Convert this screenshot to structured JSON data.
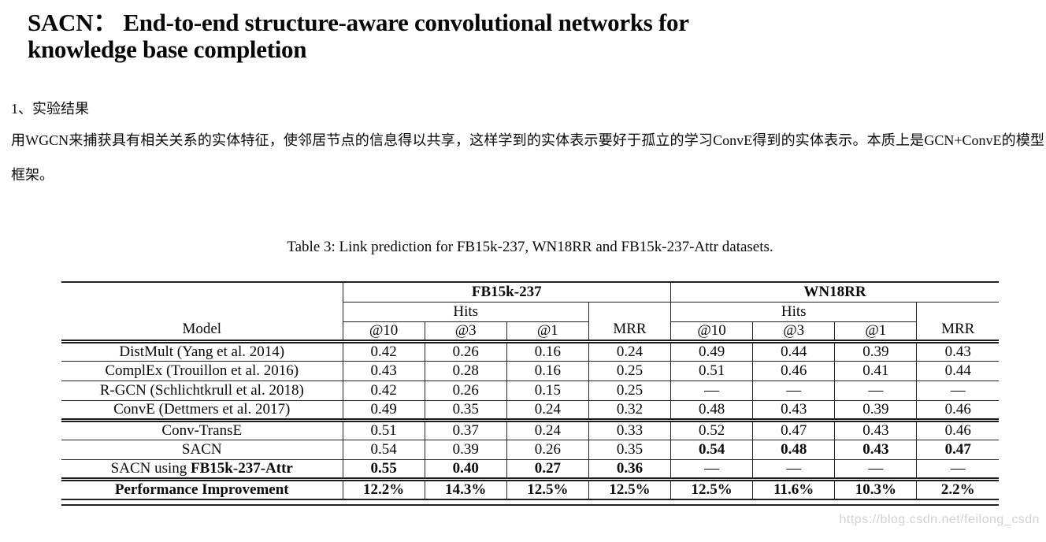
{
  "page": {
    "title_line1": "SACN： End-to-end structure-aware convolutional networks for",
    "title_line2": "knowledge base completion",
    "section_heading": "1、实验结果",
    "paragraph": "用WGCN来捕获具有相关关系的实体特征，使邻居节点的信息得以共享，这样学到的实体表示要好于孤立的学习ConvE得到的实体表示。本质上是GCN+ConvE的模型框架。",
    "watermark": "https://blog.csdn.net/feilong_csdn"
  },
  "table": {
    "caption": "Table 3: Link prediction for FB15k-237, WN18RR and FB15k-237-Attr datasets.",
    "model_header": "Model",
    "hits_header": "Hits",
    "mrr_header": "MRR",
    "dataset_groups": [
      "FB15k-237",
      "WN18RR"
    ],
    "metric_headers": [
      "@10",
      "@3",
      "@1"
    ],
    "rows": [
      {
        "name": "distmult",
        "group_start": true,
        "label": [
          {
            "text": "DistMult (Yang et al. 2014)",
            "bold": false
          }
        ],
        "values": [
          {
            "text": "0.42",
            "bold": false
          },
          {
            "text": "0.26",
            "bold": false
          },
          {
            "text": "0.16",
            "bold": false
          },
          {
            "text": "0.24",
            "bold": false
          },
          {
            "text": "0.49",
            "bold": false
          },
          {
            "text": "0.44",
            "bold": false
          },
          {
            "text": "0.39",
            "bold": false
          },
          {
            "text": "0.43",
            "bold": false
          }
        ]
      },
      {
        "name": "complex",
        "group_start": false,
        "label": [
          {
            "text": "ComplEx (Trouillon et al. 2016)",
            "bold": false
          }
        ],
        "values": [
          {
            "text": "0.43",
            "bold": false
          },
          {
            "text": "0.28",
            "bold": false
          },
          {
            "text": "0.16",
            "bold": false
          },
          {
            "text": "0.25",
            "bold": false
          },
          {
            "text": "0.51",
            "bold": false
          },
          {
            "text": "0.46",
            "bold": false
          },
          {
            "text": "0.41",
            "bold": false
          },
          {
            "text": "0.44",
            "bold": false
          }
        ]
      },
      {
        "name": "r-gcn",
        "group_start": false,
        "label": [
          {
            "text": "R-GCN (Schlichtkrull et al. 2018)",
            "bold": false
          }
        ],
        "values": [
          {
            "text": "0.42",
            "bold": false
          },
          {
            "text": "0.26",
            "bold": false
          },
          {
            "text": "0.15",
            "bold": false
          },
          {
            "text": "0.25",
            "bold": false
          },
          {
            "text": "—",
            "bold": false
          },
          {
            "text": "—",
            "bold": false
          },
          {
            "text": "—",
            "bold": false
          },
          {
            "text": "—",
            "bold": false
          }
        ]
      },
      {
        "name": "conve",
        "group_start": false,
        "label": [
          {
            "text": "ConvE (Dettmers et al. 2017)",
            "bold": false
          }
        ],
        "values": [
          {
            "text": "0.49",
            "bold": false
          },
          {
            "text": "0.35",
            "bold": false
          },
          {
            "text": "0.24",
            "bold": false
          },
          {
            "text": "0.32",
            "bold": false
          },
          {
            "text": "0.48",
            "bold": false
          },
          {
            "text": "0.43",
            "bold": false
          },
          {
            "text": "0.39",
            "bold": false
          },
          {
            "text": "0.46",
            "bold": false
          }
        ]
      },
      {
        "name": "conv-transe",
        "group_start": true,
        "label": [
          {
            "text": "Conv-TransE",
            "bold": false
          }
        ],
        "values": [
          {
            "text": "0.51",
            "bold": false
          },
          {
            "text": "0.37",
            "bold": false
          },
          {
            "text": "0.24",
            "bold": false
          },
          {
            "text": "0.33",
            "bold": false
          },
          {
            "text": "0.52",
            "bold": false
          },
          {
            "text": "0.47",
            "bold": false
          },
          {
            "text": "0.43",
            "bold": false
          },
          {
            "text": "0.46",
            "bold": false
          }
        ]
      },
      {
        "name": "sacn",
        "group_start": false,
        "label": [
          {
            "text": "SACN",
            "bold": false
          }
        ],
        "values": [
          {
            "text": "0.54",
            "bold": false
          },
          {
            "text": "0.39",
            "bold": false
          },
          {
            "text": "0.26",
            "bold": false
          },
          {
            "text": "0.35",
            "bold": false
          },
          {
            "text": "0.54",
            "bold": true
          },
          {
            "text": "0.48",
            "bold": true
          },
          {
            "text": "0.43",
            "bold": true
          },
          {
            "text": "0.47",
            "bold": true
          }
        ]
      },
      {
        "name": "sacn-attr",
        "group_start": false,
        "label": [
          {
            "text": "SACN using ",
            "bold": false
          },
          {
            "text": "FB15k-237-Attr",
            "bold": true
          }
        ],
        "values": [
          {
            "text": "0.55",
            "bold": true
          },
          {
            "text": "0.40",
            "bold": true
          },
          {
            "text": "0.27",
            "bold": true
          },
          {
            "text": "0.36",
            "bold": true
          },
          {
            "text": "—",
            "bold": false
          },
          {
            "text": "—",
            "bold": false
          },
          {
            "text": "—",
            "bold": false
          },
          {
            "text": "—",
            "bold": false
          }
        ]
      },
      {
        "name": "performance-improvement",
        "group_start": true,
        "label": [
          {
            "text": "Performance Improvement",
            "bold": true
          }
        ],
        "values": [
          {
            "text": "12.2%",
            "bold": true
          },
          {
            "text": "14.3%",
            "bold": true
          },
          {
            "text": "12.5%",
            "bold": true
          },
          {
            "text": "12.5%",
            "bold": true
          },
          {
            "text": "12.5%",
            "bold": true
          },
          {
            "text": "11.6%",
            "bold": true
          },
          {
            "text": "10.3%",
            "bold": true
          },
          {
            "text": "2.2%",
            "bold": true
          }
        ]
      }
    ]
  }
}
